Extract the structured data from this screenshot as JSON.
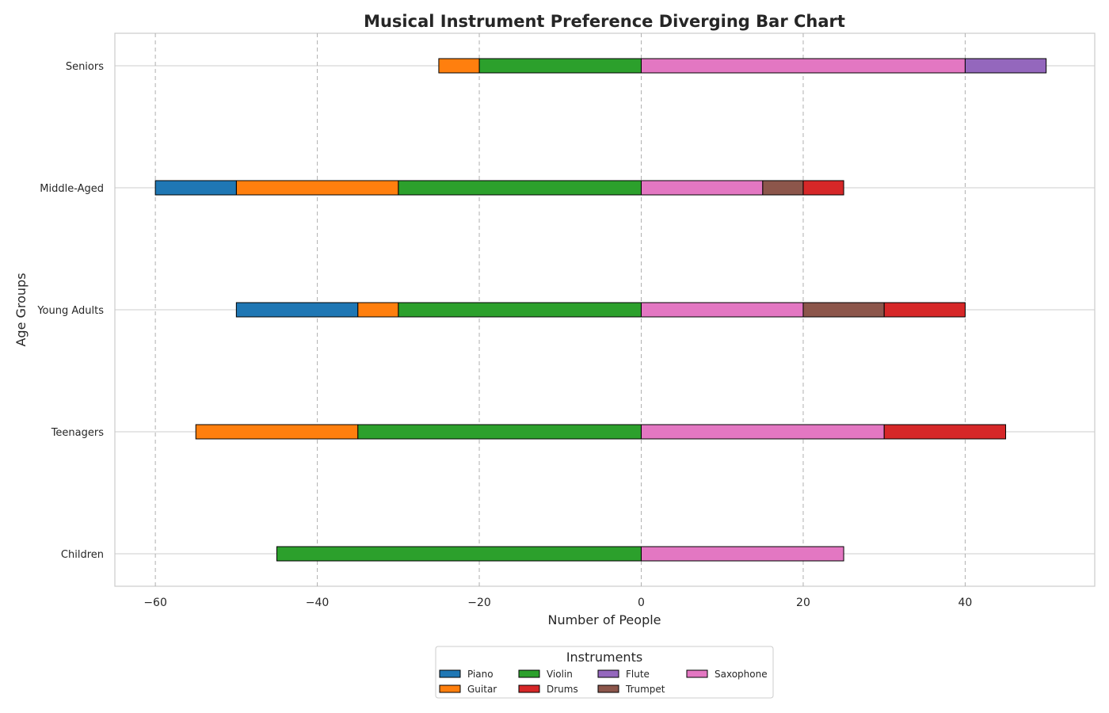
{
  "chart_data": {
    "type": "bar",
    "orientation": "horizontal",
    "stacking": "diverging",
    "title": "Musical Instrument Preference Diverging Bar Chart",
    "xlabel": "Number of People",
    "ylabel": "Age Groups",
    "xlim": [
      -65,
      56
    ],
    "xticks": [
      -60,
      -40,
      -20,
      0,
      20,
      40
    ],
    "xtick_labels": [
      "−60",
      "−40",
      "−20",
      "0",
      "20",
      "40"
    ],
    "categories": [
      "Children",
      "Teenagers",
      "Young Adults",
      "Middle-Aged",
      "Seniors"
    ],
    "grid": true,
    "legend": {
      "title": "Instruments",
      "placement": "bottom-center",
      "entries": [
        "Piano",
        "Guitar",
        "Violin",
        "Drums",
        "Flute",
        "Trumpet",
        "Saxophone"
      ]
    },
    "series": [
      {
        "name": "Piano",
        "color": "#1f77b4",
        "values": [
          0,
          0,
          -15,
          -10,
          0
        ]
      },
      {
        "name": "Guitar",
        "color": "#ff7f0e",
        "values": [
          0,
          -20,
          -5,
          -20,
          -5
        ]
      },
      {
        "name": "Violin",
        "color": "#2ca02c",
        "values": [
          -45,
          -35,
          -30,
          -30,
          -20
        ]
      },
      {
        "name": "Drums",
        "color": "#d62728",
        "values": [
          0,
          15,
          10,
          5,
          0
        ]
      },
      {
        "name": "Flute",
        "color": "#9467bd",
        "values": [
          0,
          0,
          0,
          0,
          10
        ]
      },
      {
        "name": "Trumpet",
        "color": "#8c564b",
        "values": [
          0,
          0,
          10,
          5,
          0
        ]
      },
      {
        "name": "Saxophone",
        "color": "#e377c2",
        "values": [
          25,
          30,
          20,
          15,
          40
        ]
      }
    ],
    "negative_stack_order": [
      "Violin",
      "Guitar",
      "Piano"
    ],
    "positive_stack_order": [
      "Saxophone",
      "Trumpet",
      "Drums",
      "Flute"
    ]
  }
}
